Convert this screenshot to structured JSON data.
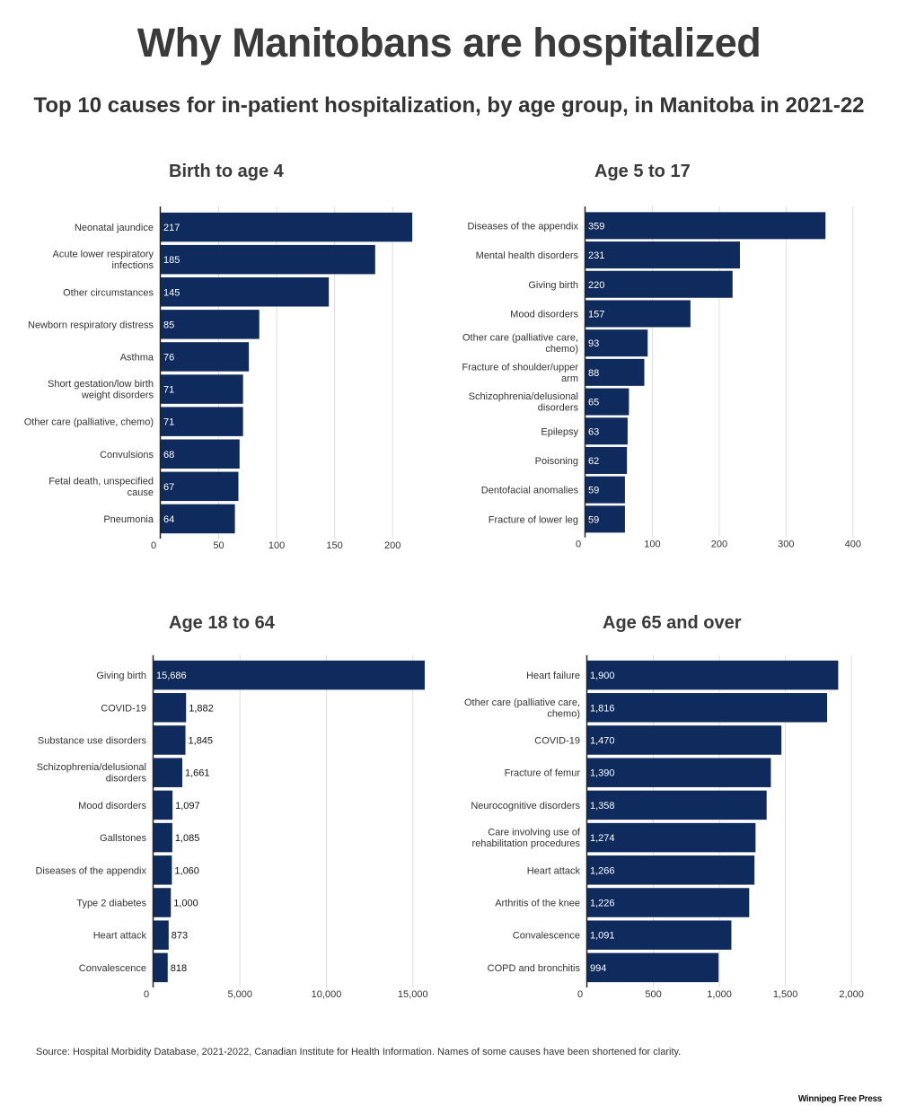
{
  "title": "Why Manitobans are hospitalized",
  "subtitle": "Top 10 causes for in-patient hospitalization, by age group, in Manitoba in 2021-22",
  "source": "Source: Hospital Morbidity Database, 2021-2022, Canadian Institute for Health Information. Names of some causes have been shortened for clarity.",
  "logo": "Winnipeg Free Press",
  "colors": {
    "bar": "#0f2a5c",
    "grid": "#dddddd",
    "axis": "#222222",
    "text": "#333333"
  },
  "chart_data": [
    {
      "type": "bar",
      "orientation": "horizontal",
      "title": "Birth to age 4",
      "categories": [
        [
          "Neonatal jaundice"
        ],
        [
          "Acute lower respiratory",
          "infections"
        ],
        [
          "Other circumstances"
        ],
        [
          "Newborn respiratory distress"
        ],
        [
          "Asthma"
        ],
        [
          "Short gestation/low birth",
          "weight disorders"
        ],
        [
          "Other care (palliative, chemo)"
        ],
        [
          "Convulsions"
        ],
        [
          "Fetal death, unspecified",
          "cause"
        ],
        [
          "Pneumonia"
        ]
      ],
      "values": [
        217,
        185,
        145,
        85,
        76,
        71,
        71,
        68,
        67,
        64
      ],
      "value_labels": [
        "217",
        "185",
        "145",
        "85",
        "76",
        "71",
        "71",
        "68",
        "67",
        "64"
      ],
      "xticks": [
        0,
        50,
        100,
        150,
        200
      ],
      "tick_labels": [
        "0",
        "50",
        "100",
        "150",
        "200"
      ],
      "xlim": [
        0,
        227
      ],
      "grid": true
    },
    {
      "type": "bar",
      "orientation": "horizontal",
      "title": "Age 5 to 17",
      "categories": [
        [
          "Diseases of the appendix"
        ],
        [
          "Mental health disorders"
        ],
        [
          "Giving birth"
        ],
        [
          "Mood disorders"
        ],
        [
          "Other care (palliative care,",
          "chemo)"
        ],
        [
          "Fracture of shoulder/upper",
          "arm"
        ],
        [
          "Schizophrenia/delusional",
          "disorders"
        ],
        [
          "Epilepsy"
        ],
        [
          "Poisoning"
        ],
        [
          "Dentofacial anomalies"
        ],
        [
          "Fracture of lower leg"
        ]
      ],
      "values": [
        359,
        231,
        220,
        157,
        93,
        88,
        65,
        63,
        62,
        59,
        59
      ],
      "value_labels": [
        "359",
        "231",
        "220",
        "157",
        "93",
        "88",
        "65",
        "63",
        "62",
        "59",
        "59"
      ],
      "xticks": [
        0,
        100,
        200,
        300,
        400
      ],
      "tick_labels": [
        "0",
        "100",
        "200",
        "300",
        "400"
      ],
      "xlim": [
        0,
        403
      ],
      "grid": true
    },
    {
      "type": "bar",
      "orientation": "horizontal",
      "title": "Age 18 to 64",
      "categories": [
        [
          "Giving birth"
        ],
        [
          "COVID-19"
        ],
        [
          "Substance use disorders"
        ],
        [
          "Schizophrenia/delusional",
          "disorders"
        ],
        [
          "Mood disorders"
        ],
        [
          "Gallstones"
        ],
        [
          "Diseases of the appendix"
        ],
        [
          "Type 2 diabetes"
        ],
        [
          "Heart attack"
        ],
        [
          "Convalescence"
        ]
      ],
      "values": [
        15686,
        1882,
        1845,
        1661,
        1097,
        1085,
        1060,
        1000,
        873,
        818
      ],
      "value_labels": [
        "15,686",
        "1,882",
        "1,845",
        "1,661",
        "1,097",
        "1,085",
        "1,060",
        "1,000",
        "873",
        "818"
      ],
      "xticks": [
        0,
        5000,
        10000,
        15000
      ],
      "tick_labels": [
        "0",
        "5,000",
        "10,000",
        "15,000"
      ],
      "xlim": [
        0,
        16000
      ],
      "grid": true
    },
    {
      "type": "bar",
      "orientation": "horizontal",
      "title": "Age 65 and over",
      "categories": [
        [
          "Heart failure"
        ],
        [
          "Other care (palliative care,",
          "chemo)"
        ],
        [
          "COVID-19"
        ],
        [
          "Fracture of femur"
        ],
        [
          "Neurocognitive disorders"
        ],
        [
          "Care involving use of",
          "rehabilitation procedures"
        ],
        [
          "Heart attack"
        ],
        [
          "Arthritis of the knee"
        ],
        [
          "Convalescence"
        ],
        [
          "COPD and bronchitis"
        ]
      ],
      "values": [
        1900,
        1816,
        1470,
        1390,
        1358,
        1274,
        1266,
        1226,
        1091,
        994
      ],
      "value_labels": [
        "1,900",
        "1,816",
        "1,470",
        "1,390",
        "1,358",
        "1,274",
        "1,266",
        "1,226",
        "1,091",
        "994"
      ],
      "xticks": [
        0,
        500,
        1000,
        1500,
        2000
      ],
      "tick_labels": [
        "0",
        "500",
        "1,000",
        "1,500",
        "2,000"
      ],
      "xlim": [
        0,
        2040
      ],
      "grid": true
    }
  ]
}
